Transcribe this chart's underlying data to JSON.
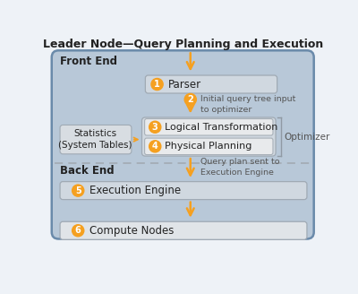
{
  "title": "Leader Node—Query Planning and Execution",
  "bg_color": "#eef2f7",
  "main_box_fill": "#b8c8d8",
  "main_box_edge": "#6a8aaa",
  "step_box_fill": "#d0d8e0",
  "step_box_edge": "#a0aab4",
  "white_box_fill": "#e8eaec",
  "white_box_edge": "#a8b0b8",
  "stats_box_fill": "#d8dde2",
  "stats_box_edge": "#a0aab4",
  "compute_box_fill": "#e0e4e8",
  "compute_box_edge": "#a0aab4",
  "orange": "#f5a020",
  "dashed_color": "#a0a8b0",
  "text_dark": "#222222",
  "text_gray": "#555555",
  "front_end_label": "Front End",
  "back_end_label": "Back End",
  "optimizer_label": "Optimizer",
  "steps": [
    {
      "num": "1",
      "label": "Parser"
    },
    {
      "num": "2",
      "label": ""
    },
    {
      "num": "3",
      "label": "Logical Transformation"
    },
    {
      "num": "4",
      "label": "Physical Planning"
    },
    {
      "num": "5",
      "label": "Execution Engine"
    },
    {
      "num": "6",
      "label": "Compute Nodes"
    }
  ],
  "ann1": "Initial query tree input\nto optimizer",
  "ann2": "Query plan sent to\nExecution Engine",
  "stats_label": "Statistics\n(System Tables)"
}
